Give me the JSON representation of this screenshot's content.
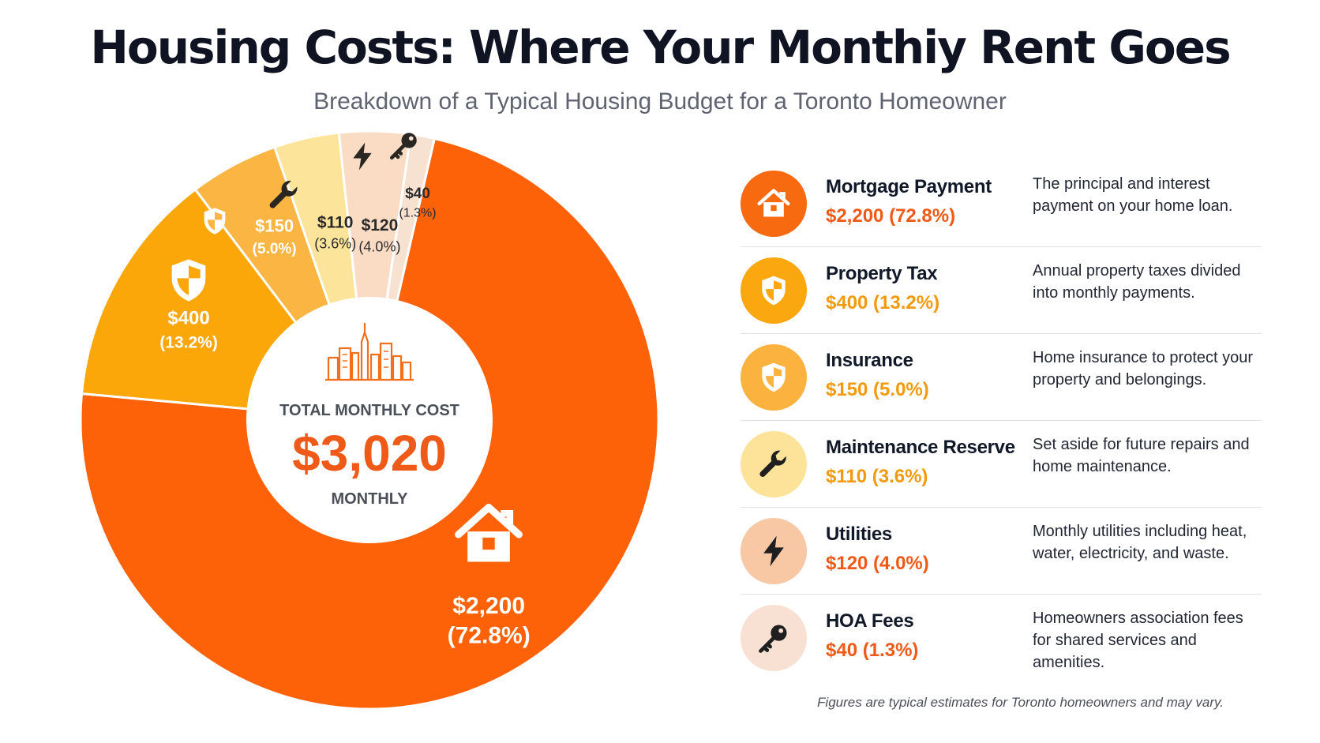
{
  "header": {
    "title": "Housing Costs: Where Your Monthiy Rent Goes",
    "subtitle": "Breakdown of a Typical Housing Budget for a Toronto Homeowner"
  },
  "center": {
    "icon": "city-skyline-icon",
    "label": "TOTAL MONTHLY COST",
    "value": "$3,020",
    "unit": "MONTHLY"
  },
  "chart_data": {
    "type": "pie",
    "title": "Housing Costs: Where Your Monthiy Rent Goes",
    "total": 3020,
    "slices": [
      {
        "key": "mortgage",
        "value": 2200,
        "label": "$2,200",
        "pct": "(72.8%)",
        "color": "#fd6208",
        "icon": "house-icon",
        "text_color": "#ffffff"
      },
      {
        "key": "property_tax",
        "value": 400,
        "label": "$400",
        "pct": "(13.2%)",
        "color": "#fba609",
        "icon": "shield-icon",
        "text_color": "#ffffff"
      },
      {
        "key": "insurance",
        "value": 150,
        "label": "$150",
        "pct": "(5.0%)",
        "color": "#fbb543",
        "icon": "shield-icon",
        "text_color": "#ffffff"
      },
      {
        "key": "maintenance",
        "value": 110,
        "label": "$110",
        "pct": "(3.6%)",
        "color": "#fde49b",
        "icon": "wrench-icon",
        "text_color": "#2a2a2a"
      },
      {
        "key": "utilities",
        "value": 120,
        "label": "$120",
        "pct": "(4.0%)",
        "color": "#fadbc4",
        "icon": "lightning-icon",
        "text_color": "#2a2a2a"
      },
      {
        "key": "hoa",
        "value": 40,
        "label": "$40",
        "pct": "(1.3%)",
        "color": "#f7e1d1",
        "icon": "key-icon",
        "text_color": "#2a2a2a"
      }
    ]
  },
  "legend": {
    "items": [
      {
        "name": "Mortgage Payment",
        "amount": "$2,200 (72.8%)",
        "description": "The principal and interest payment on your home loan.",
        "icon": "house-icon",
        "disc_color": "#f76a10",
        "icon_color": "#ffffff",
        "amount_color": "#ef5a18"
      },
      {
        "name": "Property Tax",
        "amount": "$400 (13.2%)",
        "description": "Annual property taxes divided into monthly payments.",
        "icon": "shield-icon",
        "disc_color": "#fba70f",
        "icon_color": "#ffffff",
        "amount_color": "#f39a0c"
      },
      {
        "name": "Insurance",
        "amount": "$150 (5.0%)",
        "description": "Home insurance to protect your property and belongings.",
        "icon": "shield-icon",
        "disc_color": "#fbb23f",
        "icon_color": "#ffffff",
        "amount_color": "#f39a0c"
      },
      {
        "name": "Maintenance Reserve",
        "amount": "$110 (3.6%)",
        "description": "Set aside for future repairs and home maintenance.",
        "icon": "wrench-icon",
        "disc_color": "#fde29a",
        "icon_color": "#1f1f1f",
        "amount_color": "#f39a0c"
      },
      {
        "name": "Utilities",
        "amount": "$120 (4.0%)",
        "description": "Monthly utilities including heat, water, electricity, and waste.",
        "icon": "lightning-icon",
        "disc_color": "#f8c7a4",
        "icon_color": "#1f1f1f",
        "amount_color": "#ef5a18"
      },
      {
        "name": "HOA Fees",
        "amount": "$40 (1.3%)",
        "description": "Homeowners association fees for shared services and amenities.",
        "icon": "key-icon",
        "disc_color": "#f8e1d2",
        "icon_color": "#1f1f1f",
        "amount_color": "#ef5a18"
      }
    ]
  },
  "footnote": "Figures are typical estimates for Toronto homeowners and may vary."
}
